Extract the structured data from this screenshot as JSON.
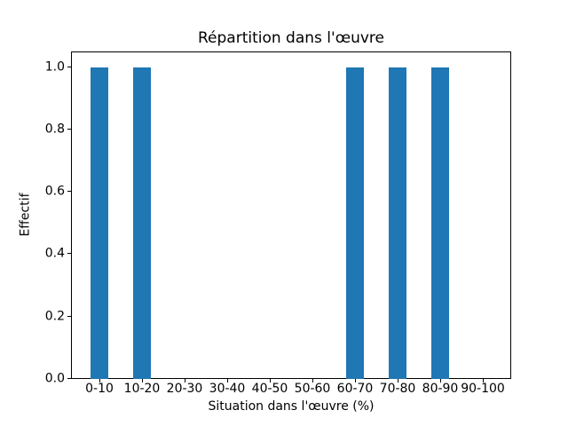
{
  "chart_data": {
    "type": "bar",
    "title": "Répartition dans l'œuvre",
    "xlabel": "Situation dans l'œuvre (%)",
    "ylabel": "Effectif",
    "categories": [
      "0-10",
      "10-20",
      "20-30",
      "30-40",
      "40-50",
      "50-60",
      "60-70",
      "70-80",
      "80-90",
      "90-100"
    ],
    "values": [
      1,
      1,
      0,
      0,
      0,
      0,
      1,
      1,
      1,
      0
    ],
    "yticks": [
      0.0,
      0.2,
      0.4,
      0.6,
      0.8,
      1.0
    ],
    "ytick_labels": [
      "0.0",
      "0.2",
      "0.4",
      "0.6",
      "0.8",
      "1.0"
    ],
    "ylim": [
      0,
      1.05
    ],
    "bar_color": "#1f77b4",
    "background_color": "#ffffff",
    "grid": false,
    "legend_position": "none"
  }
}
